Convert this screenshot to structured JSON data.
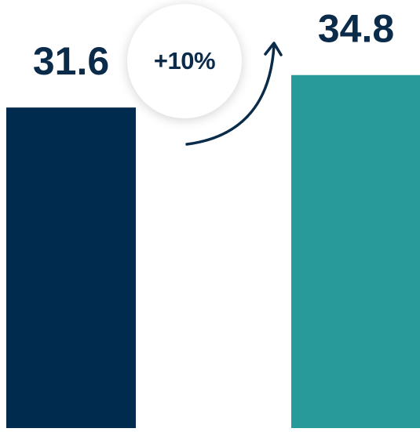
{
  "chart_data": {
    "type": "bar",
    "categories": [
      "",
      ""
    ],
    "values": [
      31.6,
      34.8
    ],
    "value_labels": [
      "31.6",
      "34.8"
    ],
    "colors": [
      "#002b4e",
      "#279a99"
    ],
    "ylim": [
      0,
      42.2
    ],
    "annotation": {
      "text": "+10%",
      "icon": "curved-up-arrow-icon",
      "color": "#0b2b4b"
    },
    "label_color": "#0b2b4b",
    "grid": false,
    "legend": "none"
  }
}
